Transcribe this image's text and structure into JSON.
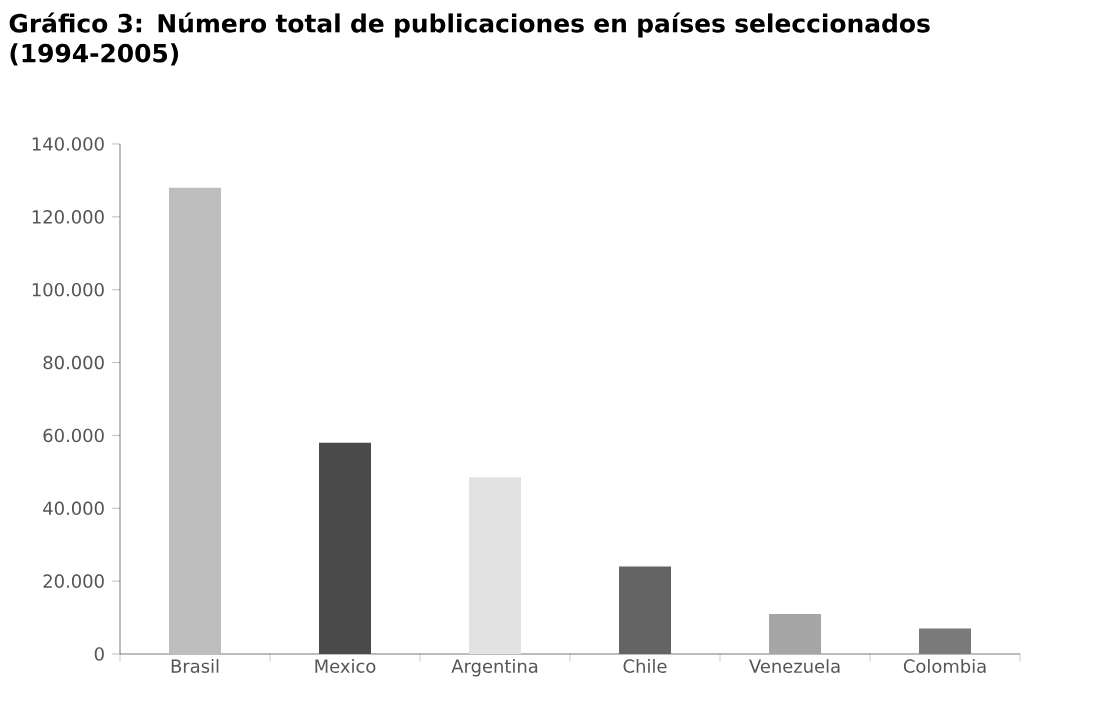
{
  "chart_data": {
    "type": "bar",
    "title": "Gráfico 3: Número total de publicaciones en países seleccionados (1994-2005)",
    "categories": [
      "Brasil",
      "Mexico",
      "Argentina",
      "Chile",
      "Venezuela",
      "Colombia"
    ],
    "values": [
      128000,
      58000,
      48500,
      24000,
      11000,
      7000
    ],
    "colors": [
      "#bdbdbd",
      "#4a4a4a",
      "#e2e2e2",
      "#646464",
      "#a6a6a6",
      "#7a7a7a"
    ],
    "ylim": [
      0,
      140000
    ],
    "yticks": [
      {
        "value": 0,
        "label": "0"
      },
      {
        "value": 20000,
        "label": "20.000"
      },
      {
        "value": 40000,
        "label": "40.000"
      },
      {
        "value": 60000,
        "label": "60.000"
      },
      {
        "value": 80000,
        "label": "80.000"
      },
      {
        "value": 100000,
        "label": "100.000"
      },
      {
        "value": 120000,
        "label": "120.000"
      },
      {
        "value": 140000,
        "label": "140.000"
      }
    ],
    "grid": false
  }
}
